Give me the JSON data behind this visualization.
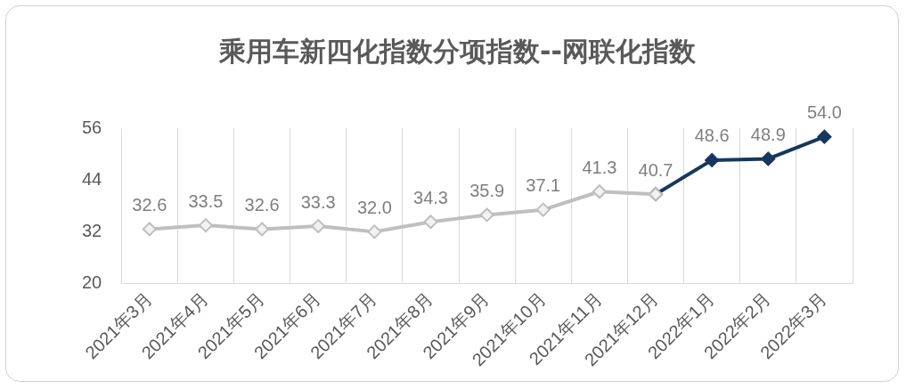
{
  "chart_data": {
    "type": "line",
    "title": "乘用车新四化指数分项指数--网联化指数",
    "categories": [
      "2021年3月",
      "2021年4月",
      "2021年5月",
      "2021年6月",
      "2021年7月",
      "2021年8月",
      "2021年9月",
      "2021年10月",
      "2021年11月",
      "2021年12月",
      "2022年1月",
      "2022年2月",
      "2022年3月"
    ],
    "series": [
      {
        "color": "#bfbfbf",
        "values": [
          32.6,
          33.5,
          32.6,
          33.3,
          32.0,
          34.3,
          35.9,
          37.1,
          41.3,
          40.7,
          null,
          null,
          null
        ],
        "value_labels": [
          "32.6",
          "33.5",
          "32.6",
          "33.3",
          "32.0",
          "34.3",
          "35.9",
          "37.1",
          "41.3",
          "40.7",
          null,
          null,
          null
        ]
      },
      {
        "color": "#17375e",
        "values": [
          null,
          null,
          null,
          null,
          null,
          null,
          null,
          null,
          null,
          40.7,
          48.6,
          48.9,
          54.0
        ],
        "value_labels": [
          null,
          null,
          null,
          null,
          null,
          null,
          null,
          null,
          null,
          null,
          "48.6",
          "48.9",
          "54.0"
        ]
      }
    ],
    "ylim": [
      20,
      56
    ],
    "yticks": [
      20,
      32,
      44,
      56
    ],
    "grid": "x",
    "legend": false,
    "marker": "diamond",
    "line_style": "solid"
  }
}
